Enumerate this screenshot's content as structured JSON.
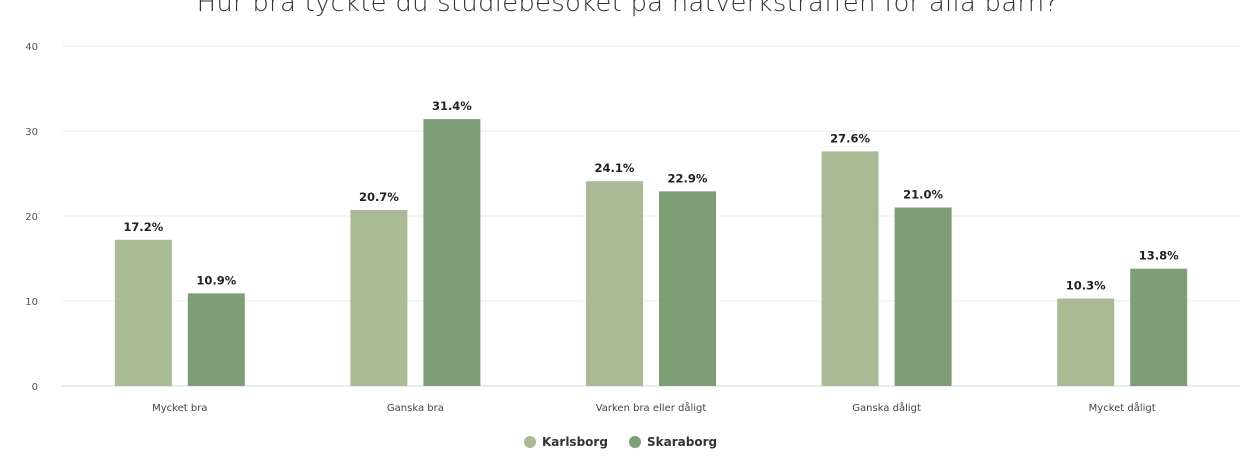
{
  "chart_data": {
    "type": "bar",
    "title": "Hur bra tyckte du studiebesöket på nätverksträffen för alla barn?",
    "categories": [
      "Mycket bra",
      "Ganska bra",
      "Varken bra eller dåligt",
      "Ganska dåligt",
      "Mycket dåligt"
    ],
    "series": [
      {
        "name": "Karlsborg",
        "color": "#a9bb95",
        "values": [
          17.2,
          20.7,
          24.1,
          27.6,
          10.3
        ],
        "labels": [
          "17.2%",
          "20.7%",
          "24.1%",
          "27.6%",
          "10.3%"
        ]
      },
      {
        "name": "Skaraborg",
        "color": "#7f9e78",
        "values": [
          10.9,
          31.4,
          22.9,
          21.0,
          13.8
        ],
        "labels": [
          "10.9%",
          "31.4%",
          "22.9%",
          "21.0%",
          "13.8%"
        ]
      }
    ],
    "ylim": [
      0,
      40
    ],
    "yticks": [
      0,
      10,
      20,
      30,
      40
    ],
    "xlabel": "",
    "ylabel": "",
    "grid": true,
    "legend_position": "bottom-center"
  }
}
